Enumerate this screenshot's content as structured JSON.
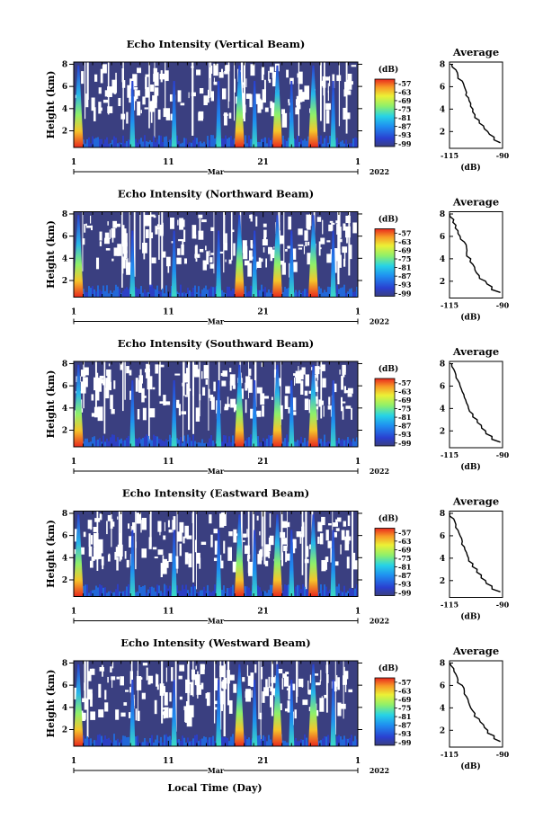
{
  "chart_data": {
    "type": "heatmap",
    "shared": {
      "xlabel": "Local Time (Day)",
      "x_tick_labels": [
        "1",
        "11",
        "21",
        "1"
      ],
      "x_ticks_day": [
        1,
        11,
        21,
        31
      ],
      "x_range_day": [
        1,
        31
      ],
      "month_label": "Mar",
      "year_label": "2022",
      "ylabel": "Height (km)",
      "y_ticks": [
        2,
        4,
        6,
        8
      ],
      "y_range_km": [
        0.5,
        8.2
      ],
      "colorbar_unit": "(dB)",
      "colorbar_ticks": [
        -57,
        -63,
        -69,
        -75,
        -81,
        -87,
        -93,
        -99
      ],
      "colorbar_range": [
        -101,
        -54
      ],
      "avg_title": "Average",
      "avg_xlabel": "(dB)",
      "avg_x_ticks": [
        -115,
        -90
      ],
      "avg_x_range": [
        -115,
        -90
      ],
      "avg_y_ticks": [
        2,
        4,
        6,
        8
      ],
      "storm_days": [
        1.5,
        7.2,
        11.6,
        16.3,
        18.5,
        20.1,
        22.5,
        24.0,
        26.3,
        28.4
      ],
      "strong_storm_days": [
        1.5,
        18.5,
        22.5,
        26.3
      ],
      "colors": {
        "background_fill": "#3a3f80",
        "colormap": "jet"
      }
    },
    "panels": [
      {
        "title": "Echo Intensity (Vertical Beam)",
        "avg_profile": {
          "height_km": [
            8,
            7.5,
            7,
            6.5,
            6,
            5.5,
            5,
            4.5,
            4,
            3.5,
            3,
            2.5,
            2,
            1.5,
            1
          ],
          "db": [
            -114,
            -112,
            -111,
            -109,
            -108,
            -107,
            -106,
            -105,
            -104,
            -103,
            -101,
            -99,
            -97,
            -94,
            -91
          ]
        }
      },
      {
        "title": "Echo Intensity (Northward Beam)",
        "avg_profile": {
          "height_km": [
            8,
            7.5,
            7,
            6.5,
            6,
            5.5,
            5,
            4.5,
            4,
            3.5,
            3,
            2.5,
            2,
            1.5,
            1
          ],
          "db": [
            -115,
            -113,
            -112,
            -111,
            -110,
            -108,
            -107,
            -107,
            -105,
            -104,
            -103,
            -101,
            -98,
            -95,
            -91
          ]
        }
      },
      {
        "title": "Echo Intensity (Southward Beam)",
        "avg_profile": {
          "height_km": [
            8,
            7.5,
            7,
            6.5,
            6,
            5.5,
            5,
            4.5,
            4,
            3.5,
            3,
            2.5,
            2,
            1.5,
            1
          ],
          "db": [
            -114,
            -113,
            -112,
            -111,
            -110,
            -109,
            -108,
            -107,
            -106,
            -104,
            -102,
            -100,
            -98,
            -95,
            -91
          ]
        }
      },
      {
        "title": "Echo Intensity (Eastward Beam)",
        "avg_profile": {
          "height_km": [
            8,
            7.5,
            7,
            6.5,
            6,
            5.5,
            5,
            4.5,
            4,
            3.5,
            3,
            2.5,
            2,
            1.5,
            1
          ],
          "db": [
            -115,
            -113,
            -112,
            -111,
            -110,
            -109,
            -108,
            -107,
            -106,
            -104,
            -102,
            -100,
            -98,
            -95,
            -91
          ]
        }
      },
      {
        "title": "Echo Intensity (Westward Beam)",
        "avg_profile": {
          "height_km": [
            8,
            7.5,
            7,
            6.5,
            6,
            5.5,
            5,
            4.5,
            4,
            3.5,
            3,
            2.5,
            2,
            1.5,
            1
          ],
          "db": [
            -115,
            -113,
            -112,
            -111,
            -109,
            -108,
            -107,
            -106,
            -105,
            -103,
            -101,
            -99,
            -97,
            -94,
            -91
          ]
        }
      }
    ]
  }
}
